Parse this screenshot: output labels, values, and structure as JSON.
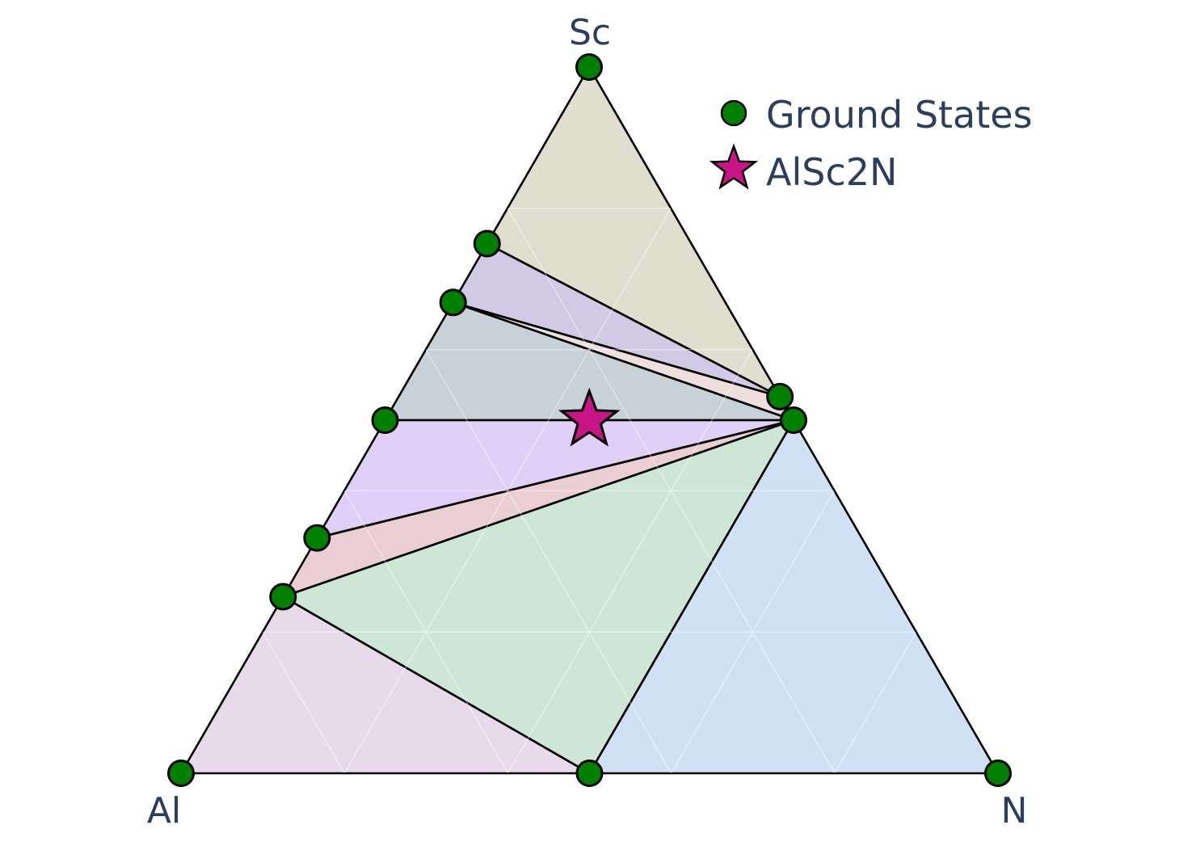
{
  "chart_data": {
    "type": "ternary",
    "axes": {
      "top": "Sc",
      "left": "Al",
      "right": "N"
    },
    "ground_states": [
      {
        "Sc": 1.0,
        "Al": 0.0,
        "N": 0.0
      },
      {
        "Sc": 0.0,
        "Al": 1.0,
        "N": 0.0
      },
      {
        "Sc": 0.0,
        "Al": 0.0,
        "N": 1.0
      },
      {
        "Sc": 0.0,
        "Al": 0.5,
        "N": 0.5
      },
      {
        "Sc": 0.5,
        "Al": 0.0,
        "N": 0.5
      },
      {
        "Sc": 0.5333,
        "Al": 0.0,
        "N": 0.4667
      },
      {
        "Sc": 0.75,
        "Al": 0.25,
        "N": 0.0
      },
      {
        "Sc": 0.6667,
        "Al": 0.3333,
        "N": 0.0
      },
      {
        "Sc": 0.5,
        "Al": 0.5,
        "N": 0.0
      },
      {
        "Sc": 0.3333,
        "Al": 0.6667,
        "N": 0.0
      },
      {
        "Sc": 0.25,
        "Al": 0.75,
        "N": 0.0
      }
    ],
    "target": {
      "name": "AlSc2N",
      "Sc": 0.5,
      "Al": 0.25,
      "N": 0.25
    },
    "facets": [
      {
        "color": "#c7c3a6",
        "vertices": [
          [
            1.0,
            0.0,
            0.0
          ],
          [
            0.75,
            0.25,
            0.0
          ],
          [
            0.5333,
            0.0,
            0.4667
          ]
        ]
      },
      {
        "color": "#aa9ed0",
        "vertices": [
          [
            0.75,
            0.25,
            0.0
          ],
          [
            0.6667,
            0.3333,
            0.0
          ],
          [
            0.5333,
            0.0,
            0.4667
          ]
        ]
      },
      {
        "color": "#e0c2c2",
        "vertices": [
          [
            0.6667,
            0.3333,
            0.0
          ],
          [
            0.5333,
            0.0,
            0.4667
          ],
          [
            0.5,
            0.0,
            0.5
          ]
        ]
      },
      {
        "color": "#9aaab8",
        "vertices": [
          [
            0.6667,
            0.3333,
            0.0
          ],
          [
            0.5,
            0.5,
            0.0
          ],
          [
            0.5,
            0.0,
            0.5
          ]
        ]
      },
      {
        "color": "#c7a7f0",
        "vertices": [
          [
            0.5,
            0.5,
            0.0
          ],
          [
            0.3333,
            0.6667,
            0.0
          ],
          [
            0.5,
            0.0,
            0.5
          ]
        ]
      },
      {
        "color": "#d9a5b0",
        "vertices": [
          [
            0.3333,
            0.6667,
            0.0
          ],
          [
            0.25,
            0.75,
            0.0
          ],
          [
            0.5,
            0.0,
            0.5
          ]
        ]
      },
      {
        "color": "#a6d1b5",
        "vertices": [
          [
            0.25,
            0.75,
            0.0
          ],
          [
            0.0,
            0.5,
            0.5
          ],
          [
            0.5,
            0.0,
            0.5
          ]
        ]
      },
      {
        "color": "#d6bcd9",
        "vertices": [
          [
            0.25,
            0.75,
            0.0
          ],
          [
            0.0,
            1.0,
            0.0
          ],
          [
            0.0,
            0.5,
            0.5
          ]
        ]
      },
      {
        "color": "#a9c8ec",
        "vertices": [
          [
            0.0,
            0.5,
            0.5
          ],
          [
            0.0,
            0.0,
            1.0
          ],
          [
            0.5,
            0.0,
            0.5
          ]
        ]
      }
    ],
    "grid": true,
    "legend_position": "top-right",
    "legend": [
      {
        "label": "Ground States",
        "marker": "circle",
        "color": "#008000"
      },
      {
        "label": "AlSc2N",
        "marker": "star",
        "color": "#c71585"
      }
    ],
    "colors": {
      "ground_state_marker": "#008000",
      "target_marker": "#c71585",
      "outline": "#000000",
      "label_text": "#2a3f5f"
    }
  }
}
